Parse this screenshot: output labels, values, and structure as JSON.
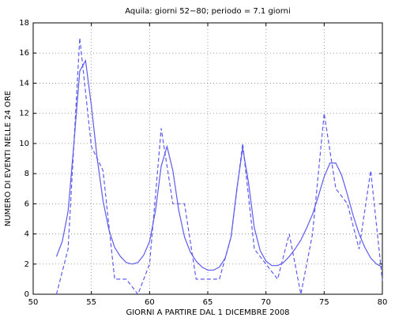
{
  "chart_data": {
    "type": "line",
    "title": "Aquila: giorni 52−80;  periodo = 7.1 giorni",
    "xlabel": "GIORNI A PARTIRE DAL 1 DICEMBRE 2008",
    "ylabel": "NUMERO DI EVENTI NELLE 24 ORE",
    "xlim": [
      50,
      80
    ],
    "xticks": [
      50,
      55,
      60,
      65,
      70,
      75,
      80
    ],
    "ylim": [
      0,
      18
    ],
    "yticks": [
      0,
      2,
      4,
      6,
      8,
      10,
      12,
      14,
      16,
      18
    ],
    "grid": true,
    "series": [
      {
        "color": "#5c5cf0",
        "dashed": true,
        "x": [
          52,
          53,
          54,
          55,
          56,
          57,
          58,
          59,
          60,
          61,
          62,
          63,
          64,
          65,
          66,
          67,
          68,
          69,
          70,
          71,
          72,
          73,
          74,
          75,
          76,
          77,
          78,
          79,
          80
        ],
        "values": [
          0,
          3,
          17,
          9.8,
          8.2,
          1,
          1,
          0,
          2,
          11,
          6,
          6,
          1,
          1,
          1,
          3.8,
          10,
          3,
          2,
          1,
          4,
          0,
          4,
          12,
          7,
          6,
          3,
          8.2,
          0.9
        ]
      },
      {
        "color": "#5c5cf0",
        "dashed": false,
        "x": [
          52,
          52.5,
          53,
          53.5,
          54,
          54.5,
          55,
          55.5,
          56,
          56.5,
          57,
          57.5,
          58,
          58.5,
          59,
          59.5,
          60,
          60.5,
          61,
          61.5,
          62,
          62.5,
          63,
          63.5,
          64,
          64.5,
          65,
          65.5,
          66,
          66.5,
          67,
          67.5,
          68,
          68.5,
          69,
          69.5,
          70,
          70.5,
          71,
          71.5,
          72,
          72.5,
          73,
          73.5,
          74,
          74.5,
          75,
          75.5,
          76,
          76.5,
          77,
          77.5,
          78,
          78.5,
          79,
          79.5,
          80
        ],
        "values": [
          2.5,
          3.5,
          5.5,
          10,
          14.8,
          15.5,
          12.5,
          9,
          6.2,
          4.3,
          3.1,
          2.5,
          2.1,
          2.0,
          2.1,
          2.6,
          3.5,
          5.5,
          8.5,
          9.8,
          8.2,
          5.6,
          3.8,
          2.8,
          2.2,
          1.8,
          1.6,
          1.6,
          1.8,
          2.4,
          3.8,
          7.0,
          9.7,
          7.4,
          4.4,
          2.9,
          2.2,
          1.9,
          1.9,
          2.1,
          2.5,
          3.0,
          3.6,
          4.4,
          5.3,
          6.5,
          7.8,
          8.7,
          8.7,
          7.9,
          6.6,
          5.2,
          4.0,
          3.1,
          2.4,
          2.0,
          1.8
        ]
      }
    ]
  }
}
